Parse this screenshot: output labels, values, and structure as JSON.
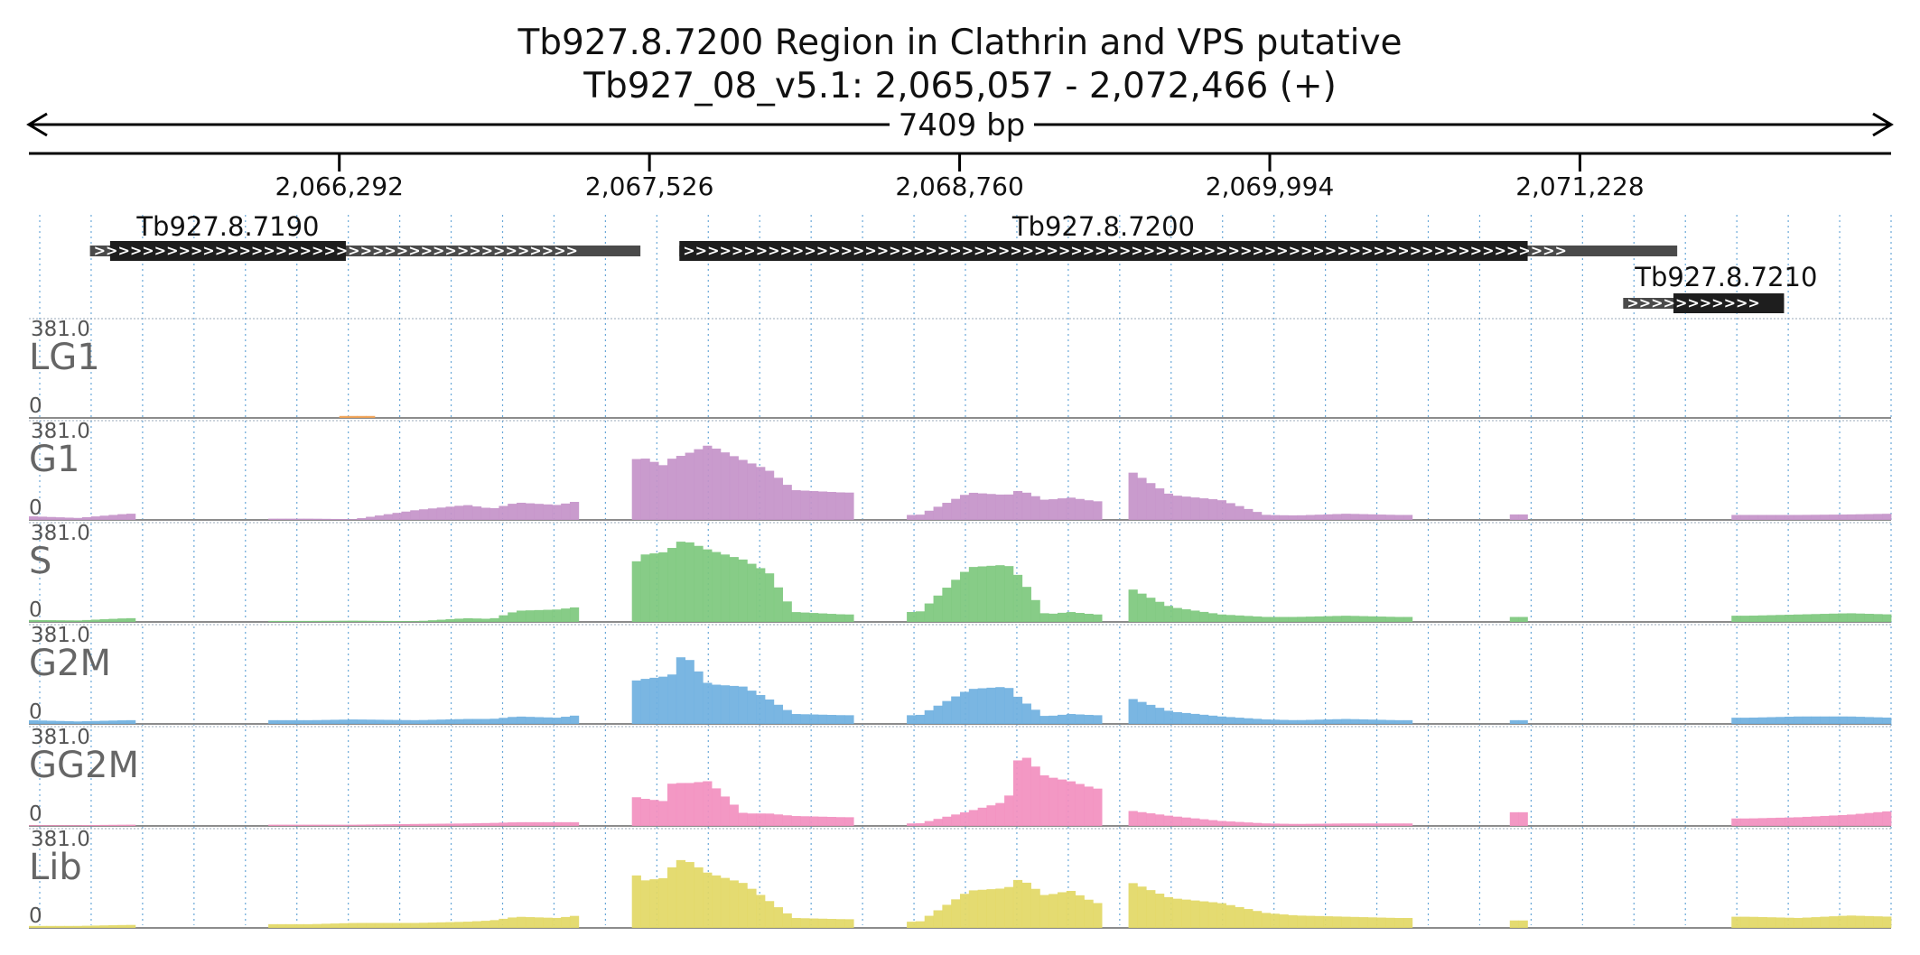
{
  "chart_data": {
    "type": "area",
    "title": "Tb927.8.7200  Region in Clathrin and VPS  putative",
    "subtitle": "Tb927_08_v5.1: 2,065,057 - 2,072,466 (+)",
    "span_label": "7409 bp",
    "region": {
      "chrom": "Tb927_08_v5.1",
      "start": 2065057,
      "end": 2072466,
      "strand": "+"
    },
    "xlim": [
      2065057,
      2072466
    ],
    "ticks": [
      {
        "value": 2066292,
        "label": "2,066,292"
      },
      {
        "value": 2067526,
        "label": "2,067,526"
      },
      {
        "value": 2068760,
        "label": "2,068,760"
      },
      {
        "value": 2069994,
        "label": "2,069,994"
      },
      {
        "value": 2071228,
        "label": "2,071,228"
      }
    ],
    "genes": [
      {
        "name": "Tb927.8.7190",
        "start": 2065300,
        "end": 2067490,
        "cds_start": 2065380,
        "cds_end": 2066318,
        "row": 0
      },
      {
        "name": "Tb927.8.7200",
        "start": 2067645,
        "end": 2071615,
        "cds_start": 2067645,
        "cds_end": 2071020,
        "row": 0
      },
      {
        "name": "Tb927.8.7210",
        "start": 2071400,
        "end": 2072040,
        "cds_start": 2071600,
        "cds_end": 2072040,
        "row": 1
      }
    ],
    "ylim": [
      0,
      381.0
    ],
    "y_max_label": "381.0",
    "y_min_label": "0",
    "x": [
      2065057,
      2065250,
      2065450,
      2065600,
      2065660,
      2066180,
      2066350,
      2066600,
      2066800,
      2066900,
      2067000,
      2067160,
      2067240,
      2067300,
      2067420,
      2067450,
      2067500,
      2067580,
      2067620,
      2067660,
      2067760,
      2067900,
      2068000,
      2068100,
      2068300,
      2068450,
      2068600,
      2068800,
      2068950,
      2069000,
      2069100,
      2069200,
      2069300,
      2069400,
      2069450,
      2069600,
      2069800,
      2069980,
      2070100,
      2070300,
      2070500,
      2070700,
      2070800,
      2071000,
      2071100,
      2071300,
      2071500,
      2071700,
      2071900,
      2072100,
      2072300,
      2072466
    ],
    "series": [
      {
        "name": "LG1",
        "color": "#f0a050",
        "values": [
          0,
          0,
          0,
          0,
          0,
          0,
          8,
          0,
          0,
          0,
          0,
          0,
          0,
          0,
          0,
          0,
          0,
          0,
          0,
          0,
          0,
          0,
          0,
          0,
          0,
          0,
          0,
          0,
          0,
          0,
          0,
          0,
          0,
          0,
          0,
          0,
          0,
          0,
          0,
          0,
          0,
          0,
          0,
          0,
          0,
          0,
          0,
          0,
          0,
          0,
          0,
          0
        ]
      },
      {
        "name": "G1",
        "color": "#c493c9",
        "values": [
          15,
          8,
          25,
          0,
          0,
          5,
          3,
          40,
          60,
          45,
          70,
          60,
          75,
          0,
          0,
          240,
          250,
          220,
          250,
          260,
          300,
          240,
          200,
          120,
          110,
          0,
          20,
          110,
          100,
          120,
          80,
          90,
          75,
          0,
          190,
          100,
          80,
          20,
          18,
          25,
          20,
          0,
          0,
          22,
          0,
          0,
          0,
          0,
          20,
          20,
          22,
          25
        ]
      },
      {
        "name": "S",
        "color": "#7dc87d",
        "values": [
          8,
          6,
          15,
          0,
          0,
          4,
          5,
          3,
          15,
          12,
          45,
          50,
          60,
          0,
          0,
          220,
          270,
          280,
          300,
          330,
          290,
          250,
          200,
          40,
          30,
          0,
          40,
          220,
          230,
          180,
          30,
          40,
          30,
          0,
          130,
          60,
          30,
          20,
          20,
          25,
          20,
          0,
          0,
          20,
          0,
          0,
          0,
          0,
          25,
          30,
          35,
          30
        ]
      },
      {
        "name": "G2M",
        "color": "#6fb0e0",
        "values": [
          15,
          10,
          15,
          0,
          0,
          15,
          18,
          15,
          20,
          20,
          30,
          25,
          35,
          0,
          0,
          170,
          180,
          190,
          200,
          290,
          160,
          150,
          100,
          40,
          35,
          0,
          35,
          140,
          150,
          100,
          30,
          40,
          35,
          0,
          100,
          50,
          30,
          18,
          15,
          20,
          15,
          0,
          0,
          15,
          0,
          0,
          0,
          0,
          25,
          30,
          30,
          25
        ]
      },
      {
        "name": "GG2M",
        "color": "#f28fbf",
        "values": [
          3,
          3,
          5,
          0,
          0,
          5,
          5,
          8,
          10,
          12,
          15,
          15,
          15,
          0,
          0,
          120,
          110,
          100,
          180,
          170,
          180,
          50,
          50,
          40,
          35,
          0,
          10,
          60,
          100,
          300,
          200,
          180,
          150,
          0,
          60,
          40,
          20,
          10,
          8,
          10,
          10,
          0,
          0,
          55,
          0,
          0,
          0,
          0,
          30,
          35,
          45,
          60
        ]
      },
      {
        "name": "Lib",
        "color": "#e2d865",
        "values": [
          8,
          8,
          12,
          0,
          0,
          15,
          20,
          20,
          25,
          30,
          45,
          40,
          50,
          0,
          0,
          230,
          190,
          200,
          250,
          280,
          220,
          180,
          110,
          40,
          35,
          0,
          25,
          150,
          160,
          200,
          130,
          150,
          100,
          0,
          180,
          120,
          100,
          60,
          50,
          45,
          40,
          0,
          0,
          30,
          0,
          0,
          0,
          0,
          45,
          40,
          50,
          45
        ]
      }
    ],
    "grid": true
  }
}
